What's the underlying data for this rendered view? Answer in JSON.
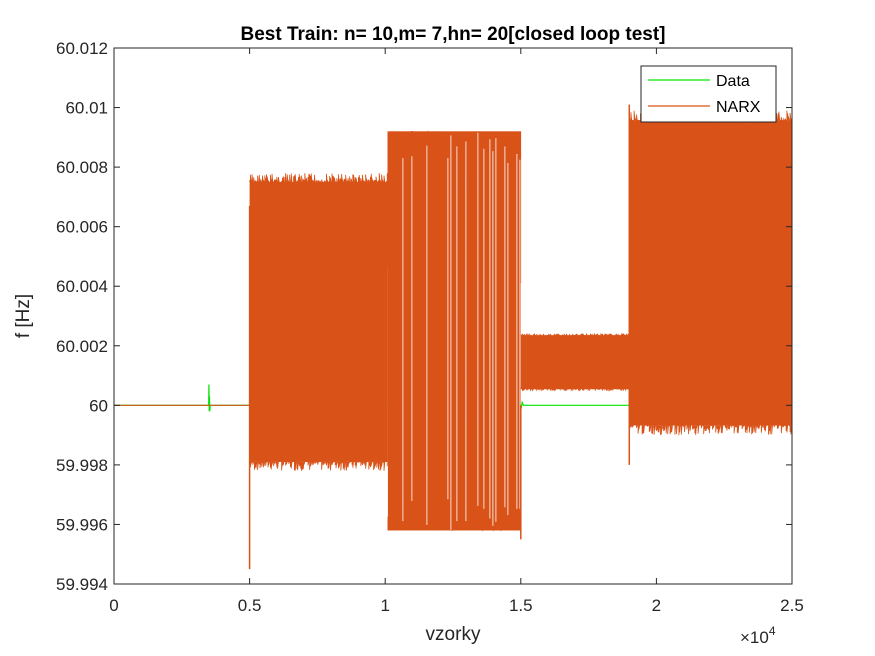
{
  "chart_data": {
    "type": "line",
    "title": "Best Train: n= 10,m= 7,hn= 20[closed loop test]",
    "xlabel": "vzorky",
    "ylabel": "f [Hz]",
    "x_exponent_label": "×10",
    "x_exponent_power": "4",
    "xlim": [
      0,
      25000
    ],
    "ylim": [
      59.994,
      60.012
    ],
    "x_ticks": [
      0,
      5000,
      10000,
      15000,
      20000,
      25000
    ],
    "x_tick_labels": [
      "0",
      "0.5",
      "1",
      "1.5",
      "2",
      "2.5"
    ],
    "y_ticks": [
      59.994,
      59.996,
      59.998,
      60,
      60.002,
      60.004,
      60.006,
      60.008,
      60.01,
      60.012
    ],
    "y_tick_labels": [
      "59.994",
      "59.996",
      "59.998",
      "60",
      "60.002",
      "60.004",
      "60.006",
      "60.008",
      "60.01",
      "60.012"
    ],
    "grid": false,
    "legend_position": "top-right",
    "series": [
      {
        "name": "Data",
        "color": "#00e600",
        "x": [
          0,
          3490,
          3500,
          3510,
          3520,
          3530,
          3550,
          4980,
          5000,
          15000,
          15020,
          15050,
          15100,
          19000,
          19010
        ],
        "y": [
          60.0,
          60.0,
          60.0007,
          59.9998,
          60.0003,
          59.9998,
          60.0,
          60.0,
          60.0,
          60.0,
          59.9999,
          60.0001,
          60.0,
          60.0,
          60.0
        ]
      },
      {
        "name": "NARX",
        "color": "#d95319",
        "segments": [
          {
            "x_start": 0,
            "x_end": 4990,
            "min": 60.0,
            "max": 60.0
          },
          {
            "x_start": 5000,
            "x_end": 10100,
            "min": 59.9978,
            "max": 60.0078
          },
          {
            "x_start": 10100,
            "x_end": 15000,
            "min": 59.9958,
            "max": 60.0092
          },
          {
            "x_start": 15000,
            "x_end": 19000,
            "min": 60.0005,
            "max": 60.0024
          },
          {
            "x_start": 19000,
            "x_end": 25000,
            "min": 59.999,
            "max": 60.0099
          }
        ],
        "spikes": [
          {
            "x": 5000,
            "y": 59.9945
          },
          {
            "x": 5000,
            "y": 60.0067
          },
          {
            "x": 15000,
            "y": 59.9955
          },
          {
            "x": 19000,
            "y": 59.998
          },
          {
            "x": 19000,
            "y": 60.0101
          }
        ]
      }
    ]
  }
}
